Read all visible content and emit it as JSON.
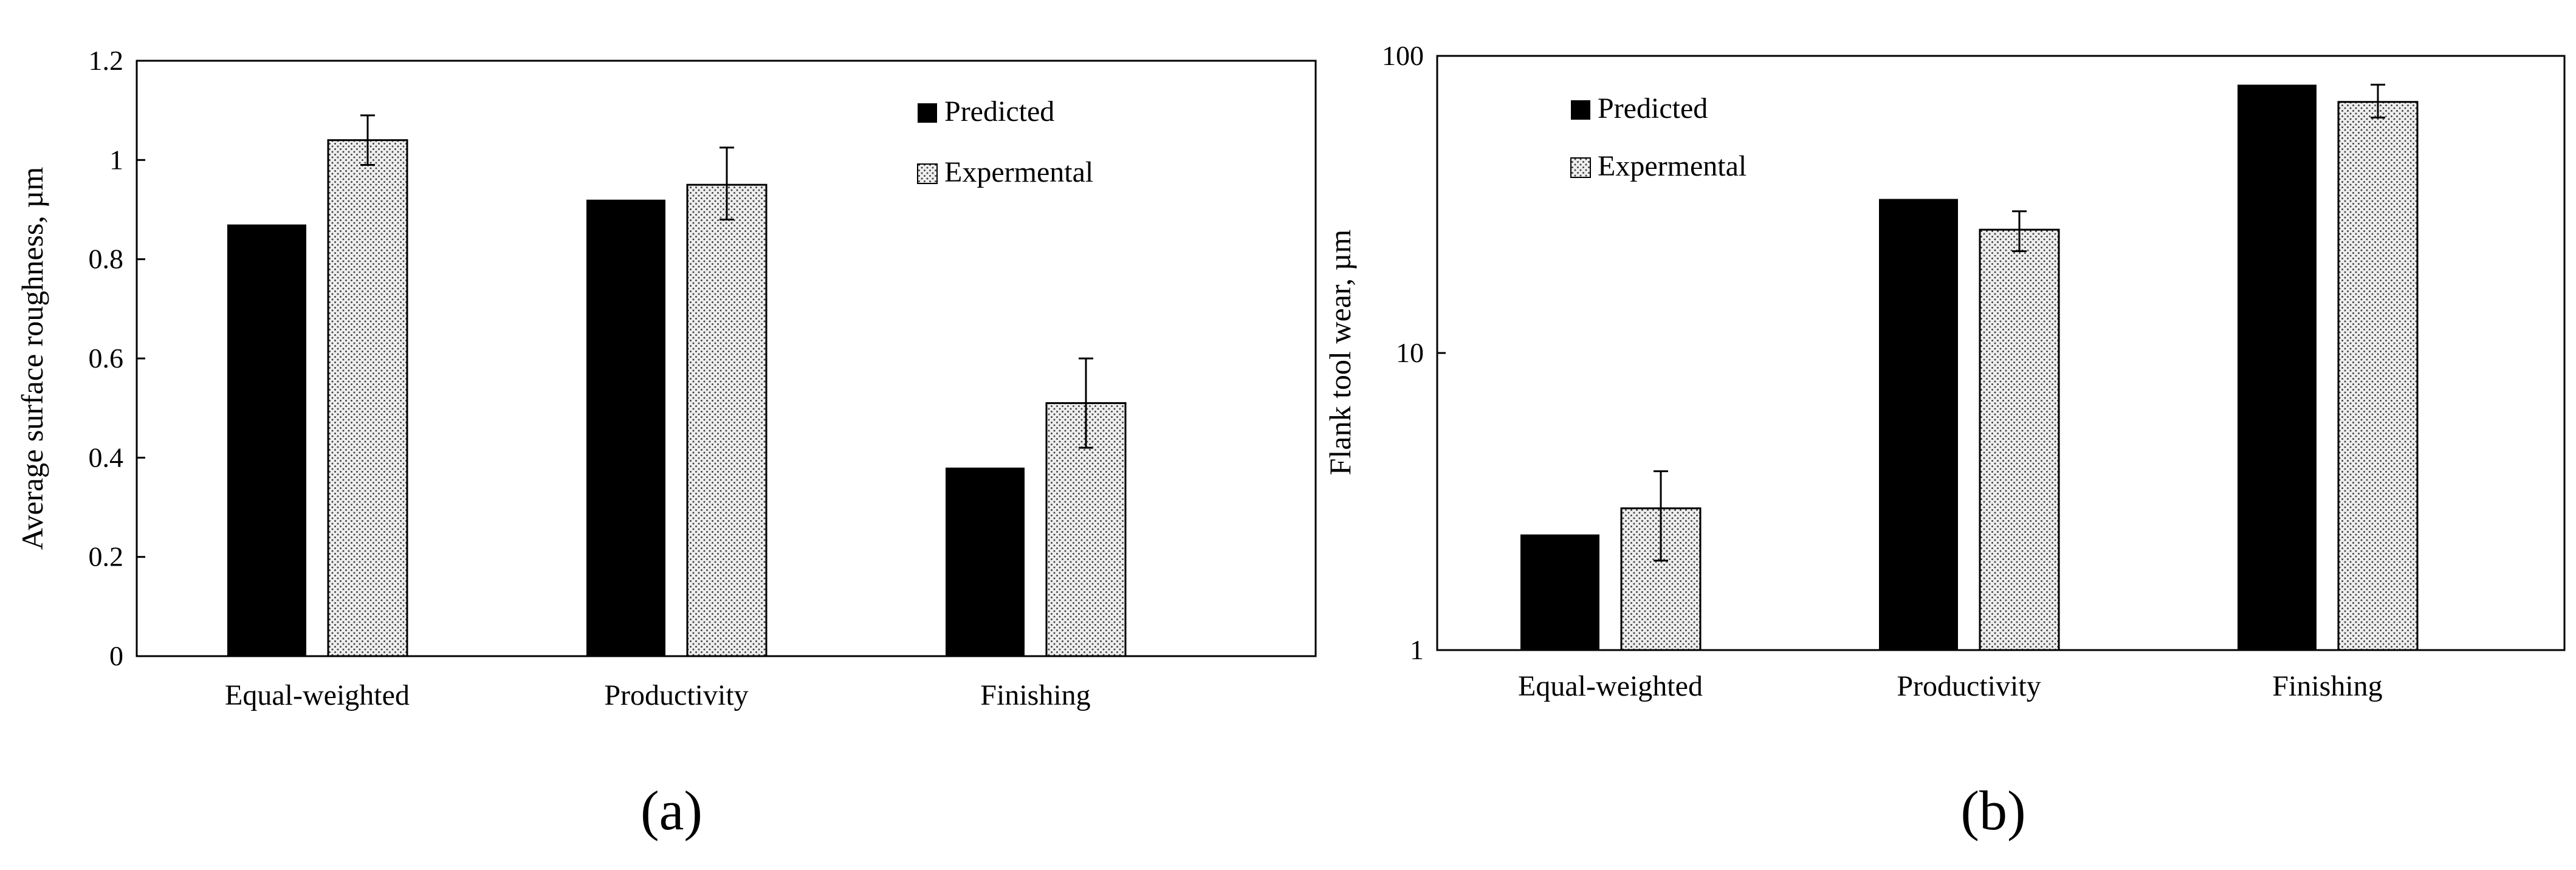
{
  "chart_data": [
    {
      "panel_label": "(a)",
      "type": "bar",
      "scale": "linear",
      "title": "",
      "xlabel": "",
      "ylabel": "Average  surface roughness, µm",
      "ylim": [
        0,
        1.2
      ],
      "ticks": [
        0,
        0.2,
        0.4,
        0.6,
        0.8,
        1,
        1.2
      ],
      "tick_labels": [
        "0",
        "0.2",
        "0.4",
        "0.6",
        "0.8",
        "1",
        "1.2"
      ],
      "categories": [
        "Equal-weighted",
        "Productivity",
        "Finishing"
      ],
      "series": [
        {
          "name": "Predicted",
          "fill": "solid",
          "values": [
            0.87,
            0.92,
            0.38
          ]
        },
        {
          "name": "Expermental",
          "fill": "dotted",
          "values": [
            1.04,
            0.95,
            0.51
          ],
          "error_low": [
            0.99,
            0.88,
            0.42
          ],
          "error_high": [
            1.09,
            1.025,
            0.6
          ]
        }
      ],
      "legend_position": "top-right",
      "grid": false
    },
    {
      "panel_label": "(b)",
      "type": "bar",
      "scale": "log",
      "title": "",
      "xlabel": "",
      "ylabel": "Flank tool wear,  µm",
      "ylim": [
        1,
        100
      ],
      "ticks": [
        1,
        10,
        100
      ],
      "tick_labels": [
        "1",
        "10",
        "100"
      ],
      "categories": [
        "Equal-weighted",
        "Productivity",
        "Finishing"
      ],
      "series": [
        {
          "name": "Predicted",
          "fill": "solid",
          "values": [
            2.45,
            33,
            80
          ]
        },
        {
          "name": "Expermental",
          "fill": "dotted",
          "values": [
            3.0,
            26,
            70
          ],
          "error_low": [
            2.0,
            22,
            62
          ],
          "error_high": [
            4.0,
            30,
            80
          ]
        }
      ],
      "legend_position": "top-left",
      "grid": false
    }
  ],
  "colors": {
    "predicted": "#000000",
    "experimental_bg": "#eeeeee",
    "experimental_dot": "#444444",
    "axis": "#000000"
  }
}
